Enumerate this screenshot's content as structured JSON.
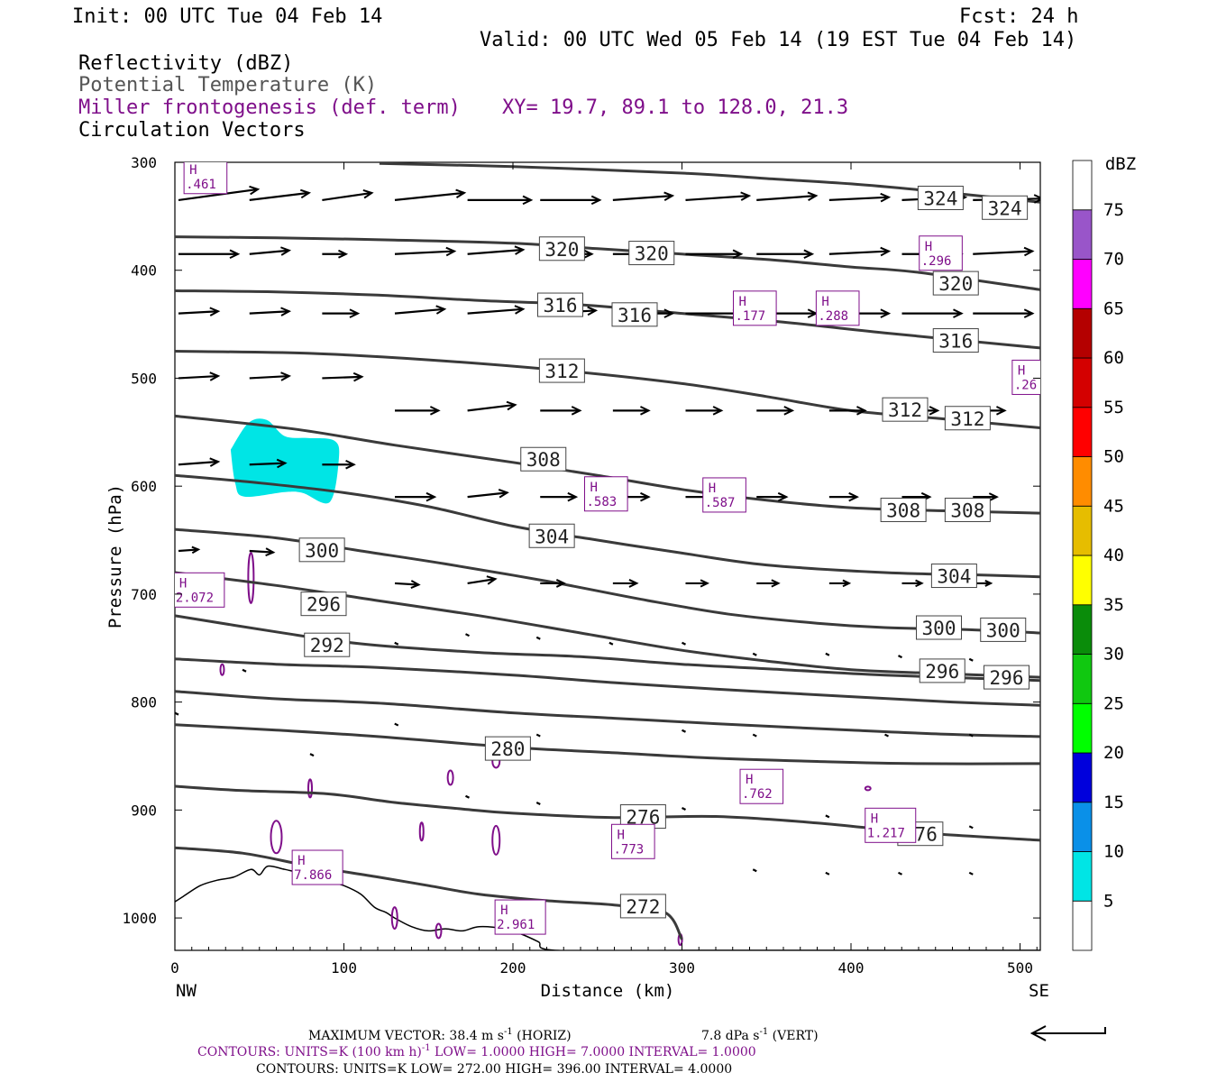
{
  "header": {
    "init": "Init: 00 UTC Tue 04 Feb 14",
    "fcst": "Fcst:   24 h",
    "valid": "Valid: 00 UTC Wed 05 Feb 14 (19 EST Tue 04 Feb 14)",
    "field1": "Reflectivity (dBZ)",
    "field2": "Potential Temperature (K)",
    "field3": "Miller frontogenesis (def. term)",
    "xy": "XY=  19.7, 89.1 to 128.0, 21.3",
    "field4": "Circulation Vectors"
  },
  "colors": {
    "field1": "#000000",
    "field2": "#555555",
    "field3": "#7f0f8a",
    "theta": "#3a3a3a",
    "fronto": "#7f0f8a",
    "reflectivity": "#00e5e5"
  },
  "footer": {
    "maxvec_a": "MAXIMUM VECTOR:  38.4 m s",
    "maxvec_b": " (HORIZ)",
    "maxvec_c": "7.8 dPa s",
    "maxvec_d": " (VERT)",
    "sup": "-1",
    "cont1_a": "CONTOURS:  UNITS=K (100 km h)",
    "cont1_b": "  LOW=  1.0000      HIGH=  7.0000      INTERVAL=   1.0000",
    "cont2": "CONTOURS:  UNITS=K  LOW=  272.00        HIGH=  396.00        INTERVAL=   4.0000"
  },
  "chart_data": {
    "type": "cross-section",
    "xlabel": "Distance (km)",
    "ylabel": "Pressure (hPa)",
    "xlim": [
      0,
      512
    ],
    "ylim": [
      300,
      1030
    ],
    "x_ticks": [
      0,
      100,
      200,
      300,
      400,
      500
    ],
    "y_ticks": [
      300,
      400,
      500,
      600,
      700,
      800,
      900,
      1000
    ],
    "x_end_labels": {
      "left": "NW",
      "right": "SE"
    },
    "theta_contours": [
      {
        "label": "324",
        "points": [
          [
            121,
            301
          ],
          [
            200,
            304
          ],
          [
            300,
            310
          ],
          [
            350,
            315
          ],
          [
            400,
            320
          ],
          [
            450,
            327
          ],
          [
            512,
            337
          ]
        ],
        "labels_at": [
          [
            453,
            333
          ],
          [
            491,
            342
          ]
        ]
      },
      {
        "label": "320",
        "points": [
          [
            0,
            369
          ],
          [
            60,
            370
          ],
          [
            130,
            372
          ],
          [
            200,
            375
          ],
          [
            250,
            380
          ],
          [
            300,
            385
          ],
          [
            350,
            390
          ],
          [
            400,
            397
          ],
          [
            440,
            402
          ],
          [
            512,
            418
          ]
        ],
        "labels_at": [
          [
            229,
            380
          ],
          [
            282,
            384
          ],
          [
            462,
            412
          ]
        ]
      },
      {
        "label": "316",
        "points": [
          [
            0,
            419
          ],
          [
            60,
            420
          ],
          [
            120,
            423
          ],
          [
            180,
            428
          ],
          [
            240,
            432
          ],
          [
            300,
            440
          ],
          [
            360,
            448
          ],
          [
            420,
            458
          ],
          [
            512,
            472
          ]
        ],
        "labels_at": [
          [
            228,
            432
          ],
          [
            272,
            441
          ],
          [
            462,
            465
          ]
        ]
      },
      {
        "label": "312",
        "points": [
          [
            0,
            475
          ],
          [
            80,
            477
          ],
          [
            150,
            483
          ],
          [
            230,
            493
          ],
          [
            300,
            505
          ],
          [
            350,
            517
          ],
          [
            400,
            530
          ],
          [
            450,
            537
          ],
          [
            512,
            546
          ]
        ],
        "labels_at": [
          [
            229,
            493
          ],
          [
            432,
            529
          ],
          [
            469,
            537
          ]
        ]
      },
      {
        "label": "308",
        "points": [
          [
            0,
            535
          ],
          [
            70,
            547
          ],
          [
            130,
            562
          ],
          [
            200,
            578
          ],
          [
            250,
            590
          ],
          [
            300,
            603
          ],
          [
            350,
            613
          ],
          [
            400,
            620
          ],
          [
            460,
            623
          ],
          [
            512,
            625
          ]
        ],
        "labels_at": [
          [
            218,
            575
          ],
          [
            431,
            622
          ],
          [
            469,
            622
          ]
        ]
      },
      {
        "label": "304",
        "points": [
          [
            0,
            590
          ],
          [
            50,
            597
          ],
          [
            100,
            606
          ],
          [
            150,
            619
          ],
          [
            200,
            637
          ],
          [
            250,
            650
          ],
          [
            300,
            662
          ],
          [
            350,
            673
          ],
          [
            420,
            680
          ],
          [
            470,
            682
          ],
          [
            512,
            684
          ]
        ],
        "labels_at": [
          [
            223,
            646
          ],
          [
            461,
            683
          ]
        ]
      },
      {
        "label": "300",
        "points": [
          [
            0,
            640
          ],
          [
            60,
            648
          ],
          [
            110,
            660
          ],
          [
            160,
            672
          ],
          [
            220,
            688
          ],
          [
            280,
            706
          ],
          [
            330,
            719
          ],
          [
            380,
            727
          ],
          [
            420,
            731
          ],
          [
            470,
            733
          ],
          [
            512,
            736
          ]
        ],
        "labels_at": [
          [
            87,
            659
          ],
          [
            452,
            731
          ],
          [
            490,
            733
          ]
        ]
      },
      {
        "label": "296",
        "points": [
          [
            0,
            680
          ],
          [
            60,
            692
          ],
          [
            120,
            706
          ],
          [
            180,
            720
          ],
          [
            240,
            736
          ],
          [
            300,
            752
          ],
          [
            350,
            762
          ],
          [
            400,
            770
          ],
          [
            460,
            774
          ],
          [
            512,
            777
          ]
        ],
        "labels_at": [
          [
            88,
            709
          ],
          [
            454,
            771
          ],
          [
            492,
            777
          ]
        ]
      },
      {
        "label": "292",
        "points": [
          [
            0,
            720
          ],
          [
            60,
            735
          ],
          [
            110,
            746
          ],
          [
            180,
            754
          ],
          [
            240,
            758
          ],
          [
            300,
            765
          ],
          [
            360,
            770
          ],
          [
            420,
            775
          ],
          [
            512,
            780
          ]
        ],
        "labels_at": [
          [
            90,
            747
          ]
        ]
      },
      {
        "label": "",
        "points": [
          [
            0,
            760
          ],
          [
            60,
            765
          ],
          [
            120,
            768
          ],
          [
            200,
            775
          ],
          [
            260,
            782
          ],
          [
            320,
            788
          ],
          [
            400,
            795
          ],
          [
            460,
            800
          ],
          [
            512,
            803
          ]
        ],
        "labels_at": []
      },
      {
        "label": "",
        "points": [
          [
            0,
            790
          ],
          [
            60,
            797
          ],
          [
            120,
            801
          ],
          [
            200,
            810
          ],
          [
            260,
            815
          ],
          [
            320,
            820
          ],
          [
            400,
            826
          ],
          [
            460,
            830
          ],
          [
            512,
            832
          ]
        ],
        "labels_at": []
      },
      {
        "label": "280",
        "points": [
          [
            0,
            821
          ],
          [
            60,
            826
          ],
          [
            120,
            832
          ],
          [
            200,
            842
          ],
          [
            260,
            847
          ],
          [
            320,
            852
          ],
          [
            380,
            855
          ],
          [
            440,
            857
          ],
          [
            512,
            857
          ]
        ],
        "labels_at": [
          [
            197,
            843
          ]
        ]
      },
      {
        "label": "276",
        "points": [
          [
            0,
            878
          ],
          [
            40,
            882
          ],
          [
            90,
            885
          ],
          [
            130,
            893
          ],
          [
            170,
            899
          ],
          [
            200,
            903
          ],
          [
            260,
            907
          ],
          [
            320,
            906
          ],
          [
            380,
            912
          ],
          [
            440,
            921
          ],
          [
            512,
            928
          ]
        ],
        "labels_at": [
          [
            277,
            906
          ],
          [
            441,
            922
          ]
        ]
      },
      {
        "label": "272",
        "points": [
          [
            0,
            935
          ],
          [
            40,
            940
          ],
          [
            80,
            952
          ],
          [
            120,
            962
          ],
          [
            150,
            970
          ],
          [
            180,
            978
          ],
          [
            220,
            984
          ],
          [
            260,
            988
          ],
          [
            290,
            995
          ],
          [
            300,
            1020
          ]
        ],
        "labels_at": [
          [
            277,
            989
          ]
        ]
      }
    ],
    "fronto_maxima": [
      {
        "label": ".461",
        "x": 15,
        "p": 314
      },
      {
        "label": ".296",
        "x": 450,
        "p": 385
      },
      {
        "label": ".177",
        "x": 340,
        "p": 436
      },
      {
        "label": ".288",
        "x": 389,
        "p": 436
      },
      {
        "label": ".26",
        "x": 505,
        "p": 500
      },
      {
        "label": ".583",
        "x": 252,
        "p": 608
      },
      {
        "label": ".587",
        "x": 322,
        "p": 609
      },
      {
        "label": "2.072",
        "x": 9,
        "p": 697
      },
      {
        "label": ".762",
        "x": 344,
        "p": 879
      },
      {
        "label": "1.217",
        "x": 418,
        "p": 915
      },
      {
        "label": ".773",
        "x": 268,
        "p": 930
      },
      {
        "label": "7.866",
        "x": 79,
        "p": 954
      },
      {
        "label": "2.961",
        "x": 199,
        "p": 1000
      }
    ],
    "reflectivity_region": {
      "min_dbz": 5,
      "x_range": [
        33,
        97
      ],
      "p_range": [
        537,
        618
      ]
    },
    "colorbar": {
      "title": "dBZ",
      "levels": [
        5,
        10,
        15,
        20,
        25,
        30,
        35,
        40,
        45,
        50,
        55,
        60,
        65,
        70,
        75
      ],
      "colors": [
        "#ffffff",
        "#00e5e5",
        "#0a90e8",
        "#0000dc",
        "#00ff00",
        "#10c810",
        "#0a8c0a",
        "#ffff00",
        "#e6bd00",
        "#ff8c00",
        "#ff0000",
        "#d40000",
        "#b40000",
        "#ff00ff",
        "#9955c9",
        "#ffffff"
      ]
    },
    "vector_rows": [
      {
        "p": 335,
        "xs": [
          0,
          42,
          85,
          128,
          171,
          214,
          257,
          300,
          342,
          385,
          428,
          470
        ],
        "u": [
          40,
          30,
          25,
          35,
          32,
          30,
          30,
          32,
          30,
          30,
          32,
          35
        ],
        "w": [
          -1.5,
          -1,
          -1,
          -1,
          0,
          0,
          -0.6,
          -0.6,
          -0.6,
          -0.4,
          -0.4,
          -0.2
        ]
      },
      {
        "p": 385,
        "xs": [
          0,
          42,
          85,
          128,
          171,
          214,
          257,
          300,
          342,
          385,
          428,
          470
        ],
        "u": [
          30,
          20,
          12,
          30,
          28,
          26,
          28,
          28,
          28,
          30,
          30,
          30
        ],
        "w": [
          0,
          -0.5,
          0,
          -0.4,
          -0.6,
          0,
          0,
          0,
          0,
          -0.4,
          0,
          -0.4
        ]
      },
      {
        "p": 440,
        "xs": [
          0,
          42,
          85,
          128,
          171,
          214,
          257,
          300,
          342,
          385,
          428,
          470
        ],
        "u": [
          20,
          20,
          18,
          25,
          28,
          28,
          30,
          28,
          30,
          30,
          30,
          30
        ],
        "w": [
          -0.3,
          -0.3,
          0,
          -0.6,
          -0.6,
          -0.4,
          0,
          0,
          0,
          0,
          0,
          0
        ]
      },
      {
        "p": 500,
        "xs": [
          0,
          42,
          85,
          128,
          171,
          214,
          257,
          300,
          342,
          385,
          428,
          470
        ],
        "u": [
          20,
          20,
          20,
          0,
          0,
          0,
          0,
          0,
          0,
          0,
          0,
          0
        ],
        "w": [
          -0.3,
          -0.3,
          -0.2,
          0,
          0,
          0,
          0,
          0,
          0,
          0,
          0,
          0
        ]
      },
      {
        "p": 530,
        "xs": [
          128,
          171,
          214,
          257,
          300,
          342,
          385,
          428,
          470
        ],
        "u": [
          22,
          24,
          20,
          18,
          18,
          18,
          18,
          18,
          16
        ],
        "w": [
          0,
          -0.8,
          0,
          0,
          0,
          0,
          0,
          0,
          0
        ]
      },
      {
        "p": 580,
        "xs": [
          0,
          42,
          85,
          128,
          171,
          214,
          257,
          300,
          342,
          385,
          428,
          470
        ],
        "u": [
          20,
          18,
          16,
          0,
          0,
          0,
          0,
          0,
          0,
          0,
          0,
          0
        ],
        "w": [
          -0.4,
          -0.2,
          0,
          0,
          0,
          0,
          0,
          0,
          0,
          0,
          0,
          0
        ]
      },
      {
        "p": 610,
        "xs": [
          128,
          171,
          214,
          257,
          300,
          342,
          385,
          428,
          470
        ],
        "u": [
          20,
          20,
          18,
          18,
          16,
          15,
          14,
          14,
          12
        ],
        "w": [
          0,
          -0.6,
          0,
          0,
          0,
          0,
          0,
          0,
          0
        ]
      },
      {
        "p": 660,
        "xs": [
          0,
          42,
          85
        ],
        "u": [
          10,
          12,
          10
        ],
        "w": [
          -0.2,
          0.2,
          0.2
        ]
      },
      {
        "p": 690,
        "xs": [
          128,
          171,
          214,
          257,
          300,
          342,
          385,
          428,
          470
        ],
        "u": [
          12,
          14,
          12,
          12,
          11,
          11,
          10,
          10,
          9
        ],
        "w": [
          0.2,
          -0.6,
          0,
          0,
          0,
          0,
          0,
          0,
          0
        ]
      }
    ]
  }
}
